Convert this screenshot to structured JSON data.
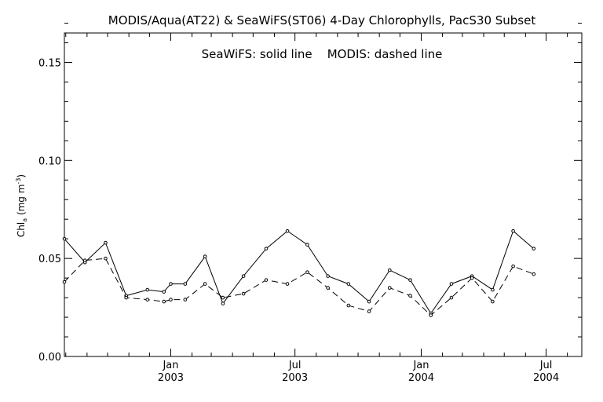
{
  "chart_data": {
    "type": "line",
    "title": "MODIS/Aqua(AT22) & SeaWiFS(ST06) 4-Day Chlorophylls, PacS30 Subset",
    "annotation": "SeaWiFS: solid line    MODIS: dashed line",
    "ylabel": "Chl_a (mg m^-3)",
    "ylim": [
      0.0,
      0.165
    ],
    "yticks": [
      {
        "value": 0.0,
        "label": "0.00"
      },
      {
        "value": 0.05,
        "label": "0.05"
      },
      {
        "value": 0.1,
        "label": "0.10"
      },
      {
        "value": 0.15,
        "label": "0.15"
      }
    ],
    "xlim": [
      "2002-07-30",
      "2004-08-22"
    ],
    "xticks": [
      {
        "date": "2003-01-01",
        "month": "Jan",
        "year": "2003"
      },
      {
        "date": "2003-07-01",
        "month": "Jul",
        "year": "2003"
      },
      {
        "date": "2004-01-01",
        "month": "Jan",
        "year": "2004"
      },
      {
        "date": "2004-07-01",
        "month": "Jul",
        "year": "2004"
      }
    ],
    "series": [
      {
        "name": "SeaWiFS",
        "style": "solid",
        "x": [
          "2002-07-30",
          "2002-08-29",
          "2002-09-28",
          "2002-10-28",
          "2002-11-28",
          "2002-12-22",
          "2003-01-01",
          "2003-01-22",
          "2003-02-20",
          "2003-03-18",
          "2003-04-17",
          "2003-05-20",
          "2003-06-20",
          "2003-07-19",
          "2003-08-18",
          "2003-09-17",
          "2003-10-17",
          "2003-11-16",
          "2003-12-16",
          "2004-01-15",
          "2004-02-14",
          "2004-03-15",
          "2004-04-14",
          "2004-05-14",
          "2004-06-13",
          "2004-07-13",
          "2004-08-22"
        ],
        "values": [
          0.06,
          0.048,
          0.058,
          0.031,
          0.034,
          0.033,
          0.037,
          0.037,
          0.051,
          0.027,
          0.041,
          0.055,
          0.064,
          0.057,
          0.041,
          0.037,
          0.028,
          0.044,
          0.039,
          0.022,
          0.037,
          0.041,
          0.034,
          0.064,
          0.055,
          null,
          null
        ]
      },
      {
        "name": "MODIS",
        "style": "dashed",
        "x": [
          "2002-07-30",
          "2002-08-29",
          "2002-09-28",
          "2002-10-28",
          "2002-11-28",
          "2002-12-22",
          "2003-01-01",
          "2003-01-22",
          "2003-02-20",
          "2003-03-18",
          "2003-04-17",
          "2003-05-20",
          "2003-06-20",
          "2003-07-19",
          "2003-08-18",
          "2003-09-17",
          "2003-10-17",
          "2003-11-16",
          "2003-12-16",
          "2004-01-15",
          "2004-02-14",
          "2004-03-15",
          "2004-04-14",
          "2004-05-14",
          "2004-06-13",
          "2004-07-13",
          "2004-08-22"
        ],
        "values": [
          0.038,
          0.049,
          0.05,
          0.03,
          0.029,
          0.028,
          0.029,
          0.029,
          0.037,
          0.03,
          0.032,
          0.039,
          0.037,
          0.043,
          0.035,
          0.026,
          0.023,
          0.035,
          0.031,
          0.021,
          0.03,
          0.04,
          0.028,
          0.046,
          0.042,
          null,
          null
        ]
      }
    ]
  }
}
